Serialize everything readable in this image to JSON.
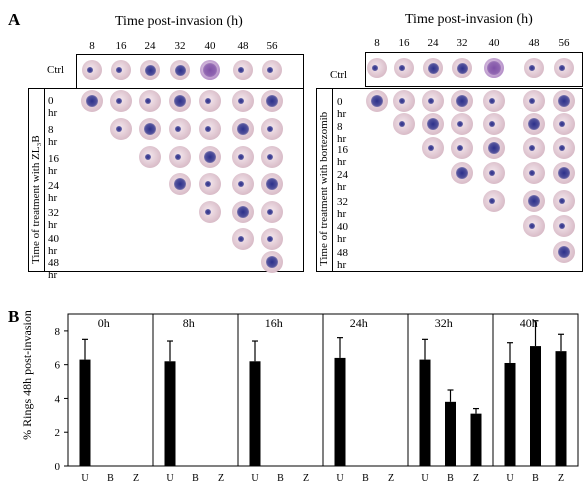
{
  "figure": {
    "panel_a_label": "A",
    "panel_b_label": "B",
    "left": {
      "time_title": "Time post-invasion (h)",
      "hours": [
        "8",
        "16",
        "24",
        "32",
        "40",
        "48",
        "56"
      ],
      "ctrl_label": "Ctrl",
      "vertical_label": "Time of treatment with ZL₃B",
      "rows": [
        "0 hr",
        "8 hr",
        "16 hr",
        "24 hr",
        "32 hr",
        "40 hr",
        "48 hr"
      ]
    },
    "right": {
      "time_title": "Time post-invasion (h)",
      "hours": [
        "8",
        "16",
        "24",
        "32",
        "40",
        "48",
        "56"
      ],
      "ctrl_label": "Ctrl",
      "vertical_label": "Time of treatment with bortezomib",
      "rows": [
        "0 hr",
        "8 hr",
        "16 hr",
        "24 hr",
        "32 hr",
        "40 hr",
        "48 hr"
      ]
    },
    "colors": {
      "rbc": "#d9bcc8",
      "parasite": "#2b2f8a",
      "schizont": "#b58fc9",
      "bar": "#000000"
    }
  },
  "chart_data": {
    "type": "bar",
    "ylabel": "% Rings 48h post-invasion",
    "ylim": [
      0,
      9
    ],
    "yticks": [
      0,
      2,
      4,
      6,
      8
    ],
    "categories": [
      "U",
      "B",
      "Z"
    ],
    "groups": [
      {
        "name": "0h",
        "values": [
          6.3,
          null,
          null
        ],
        "errors": [
          1.2,
          null,
          null
        ]
      },
      {
        "name": "8h",
        "values": [
          6.2,
          null,
          null
        ],
        "errors": [
          1.2,
          null,
          null
        ]
      },
      {
        "name": "16h",
        "values": [
          6.2,
          null,
          null
        ],
        "errors": [
          1.2,
          null,
          null
        ]
      },
      {
        "name": "24h",
        "values": [
          6.4,
          null,
          null
        ],
        "errors": [
          1.2,
          null,
          null
        ]
      },
      {
        "name": "32h",
        "values": [
          6.3,
          3.8,
          3.1
        ],
        "errors": [
          1.2,
          0.7,
          0.3
        ]
      },
      {
        "name": "40h",
        "values": [
          6.1,
          7.1,
          6.8
        ],
        "errors": [
          1.2,
          1.5,
          1.0
        ]
      }
    ]
  }
}
